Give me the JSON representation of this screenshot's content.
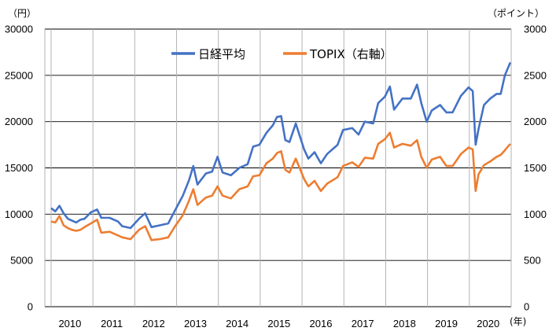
{
  "chart_data": {
    "type": "line",
    "left_unit": "（円）",
    "right_unit": "（ポイント）",
    "x_unit": "(年)",
    "x_categories": [
      "2010",
      "2011",
      "2012",
      "2013",
      "2014",
      "2015",
      "2016",
      "2017",
      "2018",
      "2019",
      "2020"
    ],
    "left_axis": {
      "min": 0,
      "max": 30000,
      "ticks": [
        "0",
        "5000",
        "10000",
        "15000",
        "20000",
        "25000",
        "30000"
      ]
    },
    "right_axis": {
      "min": 0,
      "max": 3000,
      "ticks": [
        "0",
        "500",
        "1000",
        "1500",
        "2000",
        "2500",
        "3000"
      ]
    },
    "grid": true,
    "legend_position": "top-center",
    "series": [
      {
        "name": "日経平均",
        "axis": "left",
        "color": "#4472C4",
        "points": [
          [
            2010.0,
            10650
          ],
          [
            2010.1,
            10300
          ],
          [
            2010.2,
            10900
          ],
          [
            2010.3,
            10100
          ],
          [
            2010.4,
            9500
          ],
          [
            2010.5,
            9300
          ],
          [
            2010.6,
            9100
          ],
          [
            2010.7,
            9400
          ],
          [
            2010.8,
            9500
          ],
          [
            2010.95,
            10200
          ],
          [
            2011.1,
            10500
          ],
          [
            2011.2,
            9600
          ],
          [
            2011.4,
            9600
          ],
          [
            2011.6,
            9200
          ],
          [
            2011.7,
            8700
          ],
          [
            2011.9,
            8500
          ],
          [
            2012.1,
            9500
          ],
          [
            2012.25,
            10100
          ],
          [
            2012.4,
            8600
          ],
          [
            2012.6,
            8800
          ],
          [
            2012.8,
            9000
          ],
          [
            2012.95,
            10300
          ],
          [
            2013.15,
            12000
          ],
          [
            2013.3,
            13700
          ],
          [
            2013.4,
            15200
          ],
          [
            2013.5,
            13200
          ],
          [
            2013.7,
            14400
          ],
          [
            2013.85,
            14600
          ],
          [
            2013.98,
            16200
          ],
          [
            2014.1,
            14500
          ],
          [
            2014.3,
            14200
          ],
          [
            2014.5,
            15000
          ],
          [
            2014.7,
            15400
          ],
          [
            2014.83,
            17300
          ],
          [
            2014.98,
            17500
          ],
          [
            2015.15,
            18800
          ],
          [
            2015.3,
            19600
          ],
          [
            2015.4,
            20500
          ],
          [
            2015.5,
            20600
          ],
          [
            2015.6,
            18000
          ],
          [
            2015.7,
            17800
          ],
          [
            2015.85,
            19800
          ],
          [
            2016.05,
            17000
          ],
          [
            2016.15,
            16000
          ],
          [
            2016.3,
            16700
          ],
          [
            2016.45,
            15500
          ],
          [
            2016.6,
            16500
          ],
          [
            2016.85,
            17500
          ],
          [
            2016.98,
            19100
          ],
          [
            2017.2,
            19300
          ],
          [
            2017.35,
            18600
          ],
          [
            2017.5,
            20000
          ],
          [
            2017.7,
            19800
          ],
          [
            2017.82,
            22000
          ],
          [
            2017.98,
            22700
          ],
          [
            2018.1,
            23800
          ],
          [
            2018.2,
            21300
          ],
          [
            2018.4,
            22500
          ],
          [
            2018.6,
            22500
          ],
          [
            2018.75,
            24000
          ],
          [
            2018.85,
            22000
          ],
          [
            2018.98,
            20000
          ],
          [
            2019.1,
            21200
          ],
          [
            2019.3,
            21800
          ],
          [
            2019.45,
            21000
          ],
          [
            2019.6,
            21000
          ],
          [
            2019.8,
            22800
          ],
          [
            2019.98,
            23700
          ],
          [
            2020.08,
            23300
          ],
          [
            2020.15,
            17500
          ],
          [
            2020.22,
            19200
          ],
          [
            2020.35,
            21800
          ],
          [
            2020.5,
            22500
          ],
          [
            2020.65,
            23000
          ],
          [
            2020.75,
            23000
          ],
          [
            2020.85,
            25000
          ],
          [
            2020.98,
            26400
          ]
        ]
      },
      {
        "name": "TOPIX（右軸）",
        "axis": "right",
        "color": "#ED7D31",
        "points": [
          [
            2010.0,
            920
          ],
          [
            2010.1,
            910
          ],
          [
            2010.2,
            980
          ],
          [
            2010.3,
            880
          ],
          [
            2010.4,
            850
          ],
          [
            2010.5,
            830
          ],
          [
            2010.6,
            820
          ],
          [
            2010.7,
            830
          ],
          [
            2010.8,
            860
          ],
          [
            2010.95,
            900
          ],
          [
            2011.1,
            940
          ],
          [
            2011.2,
            800
          ],
          [
            2011.4,
            810
          ],
          [
            2011.6,
            770
          ],
          [
            2011.7,
            750
          ],
          [
            2011.9,
            730
          ],
          [
            2012.1,
            830
          ],
          [
            2012.25,
            870
          ],
          [
            2012.4,
            720
          ],
          [
            2012.6,
            730
          ],
          [
            2012.8,
            750
          ],
          [
            2012.95,
            860
          ],
          [
            2013.15,
            990
          ],
          [
            2013.3,
            1150
          ],
          [
            2013.4,
            1270
          ],
          [
            2013.5,
            1100
          ],
          [
            2013.7,
            1180
          ],
          [
            2013.85,
            1200
          ],
          [
            2013.98,
            1300
          ],
          [
            2014.1,
            1200
          ],
          [
            2014.3,
            1170
          ],
          [
            2014.5,
            1270
          ],
          [
            2014.7,
            1300
          ],
          [
            2014.83,
            1410
          ],
          [
            2014.98,
            1420
          ],
          [
            2015.15,
            1550
          ],
          [
            2015.3,
            1600
          ],
          [
            2015.4,
            1660
          ],
          [
            2015.5,
            1680
          ],
          [
            2015.6,
            1480
          ],
          [
            2015.7,
            1450
          ],
          [
            2015.85,
            1600
          ],
          [
            2016.05,
            1380
          ],
          [
            2016.15,
            1300
          ],
          [
            2016.3,
            1360
          ],
          [
            2016.45,
            1250
          ],
          [
            2016.6,
            1330
          ],
          [
            2016.85,
            1400
          ],
          [
            2016.98,
            1520
          ],
          [
            2017.2,
            1560
          ],
          [
            2017.35,
            1510
          ],
          [
            2017.5,
            1610
          ],
          [
            2017.7,
            1600
          ],
          [
            2017.82,
            1760
          ],
          [
            2017.98,
            1810
          ],
          [
            2018.1,
            1880
          ],
          [
            2018.2,
            1720
          ],
          [
            2018.4,
            1760
          ],
          [
            2018.6,
            1740
          ],
          [
            2018.75,
            1800
          ],
          [
            2018.85,
            1620
          ],
          [
            2018.98,
            1500
          ],
          [
            2019.1,
            1590
          ],
          [
            2019.3,
            1620
          ],
          [
            2019.45,
            1520
          ],
          [
            2019.6,
            1520
          ],
          [
            2019.8,
            1650
          ],
          [
            2019.98,
            1720
          ],
          [
            2020.08,
            1700
          ],
          [
            2020.15,
            1250
          ],
          [
            2020.22,
            1430
          ],
          [
            2020.35,
            1530
          ],
          [
            2020.5,
            1570
          ],
          [
            2020.65,
            1620
          ],
          [
            2020.75,
            1640
          ],
          [
            2020.85,
            1690
          ],
          [
            2020.98,
            1760
          ]
        ]
      }
    ]
  }
}
